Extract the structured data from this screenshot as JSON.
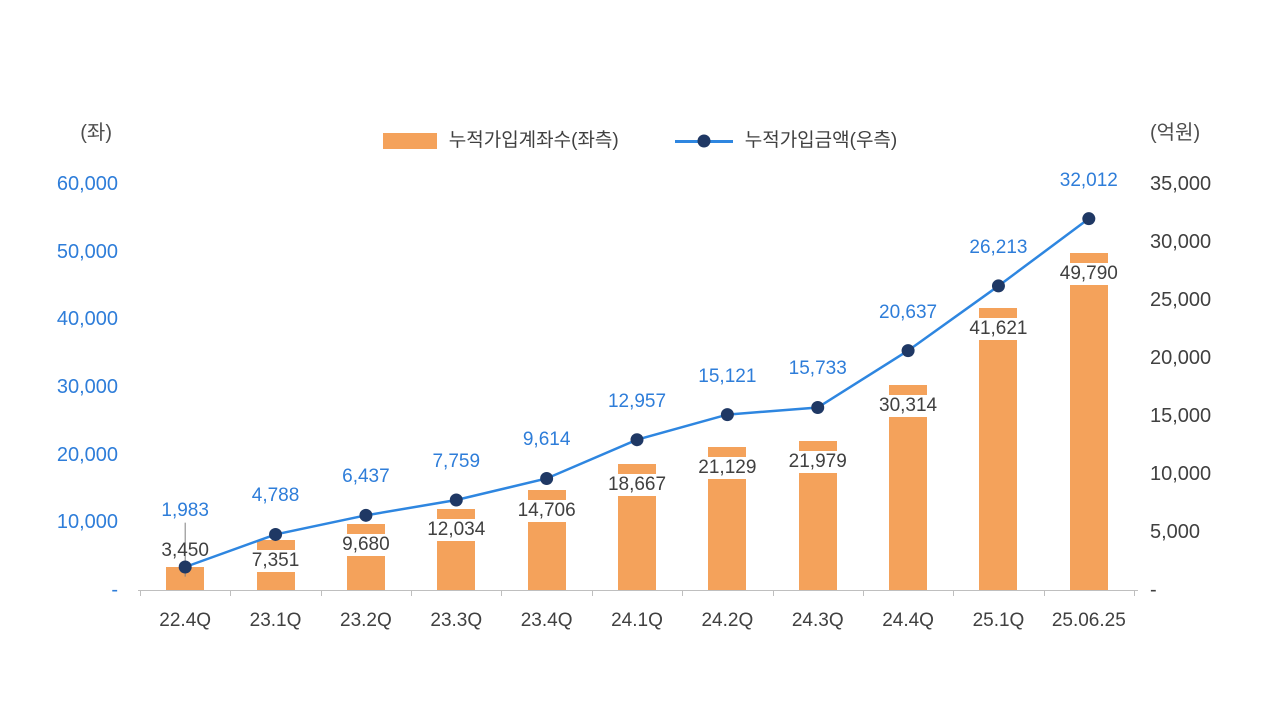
{
  "axis_units": {
    "left": "(좌)",
    "right": "(억원)"
  },
  "legend": {
    "bar_label": "누적가입계좌수(좌측)",
    "line_label": "누적가입금액(우측)"
  },
  "colors": {
    "bar": "#F4A25B",
    "line": "#2E86E0",
    "marker": "#1F3864",
    "line_label": "#2E7DD9",
    "left_axis_text": "#2E7DD9",
    "right_axis_text": "#404040",
    "bar_label_text": "#404040",
    "category_text": "#404040",
    "legend_text": "#404040",
    "unit_text": "#4D4D4D",
    "axis_line": "#BFBFBF",
    "leader_line": "#7F7F7F",
    "background": "#FFFFFF"
  },
  "chart_data": {
    "type": "bar+line",
    "title": "",
    "categories": [
      "22.4Q",
      "23.1Q",
      "23.2Q",
      "23.3Q",
      "23.4Q",
      "24.1Q",
      "24.2Q",
      "24.3Q",
      "24.4Q",
      "25.1Q",
      "25.06.25"
    ],
    "series": [
      {
        "name": "누적가입계좌수(좌측)",
        "type": "bar",
        "axis": "left",
        "values": [
          3450,
          7351,
          9680,
          12034,
          14706,
          18667,
          21129,
          21979,
          30314,
          41621,
          49790
        ]
      },
      {
        "name": "누적가입금액(우측)",
        "type": "line",
        "axis": "right",
        "values": [
          1983,
          4788,
          6437,
          7759,
          9614,
          12957,
          15121,
          15733,
          20637,
          26213,
          32012
        ]
      }
    ],
    "left_axis": {
      "unit": "(좌)",
      "min": 0,
      "max": 60000,
      "tick_labels": [
        "60,000",
        "50,000",
        "40,000",
        "30,000",
        "20,000",
        "10,000",
        "-"
      ]
    },
    "right_axis": {
      "unit": "(억원)",
      "min": 0,
      "max": 35000,
      "tick_labels": [
        "35,000",
        "30,000",
        "25,000",
        "20,000",
        "15,000",
        "10,000",
        "5,000",
        "-"
      ]
    },
    "grid": false,
    "legend_position": "top"
  }
}
